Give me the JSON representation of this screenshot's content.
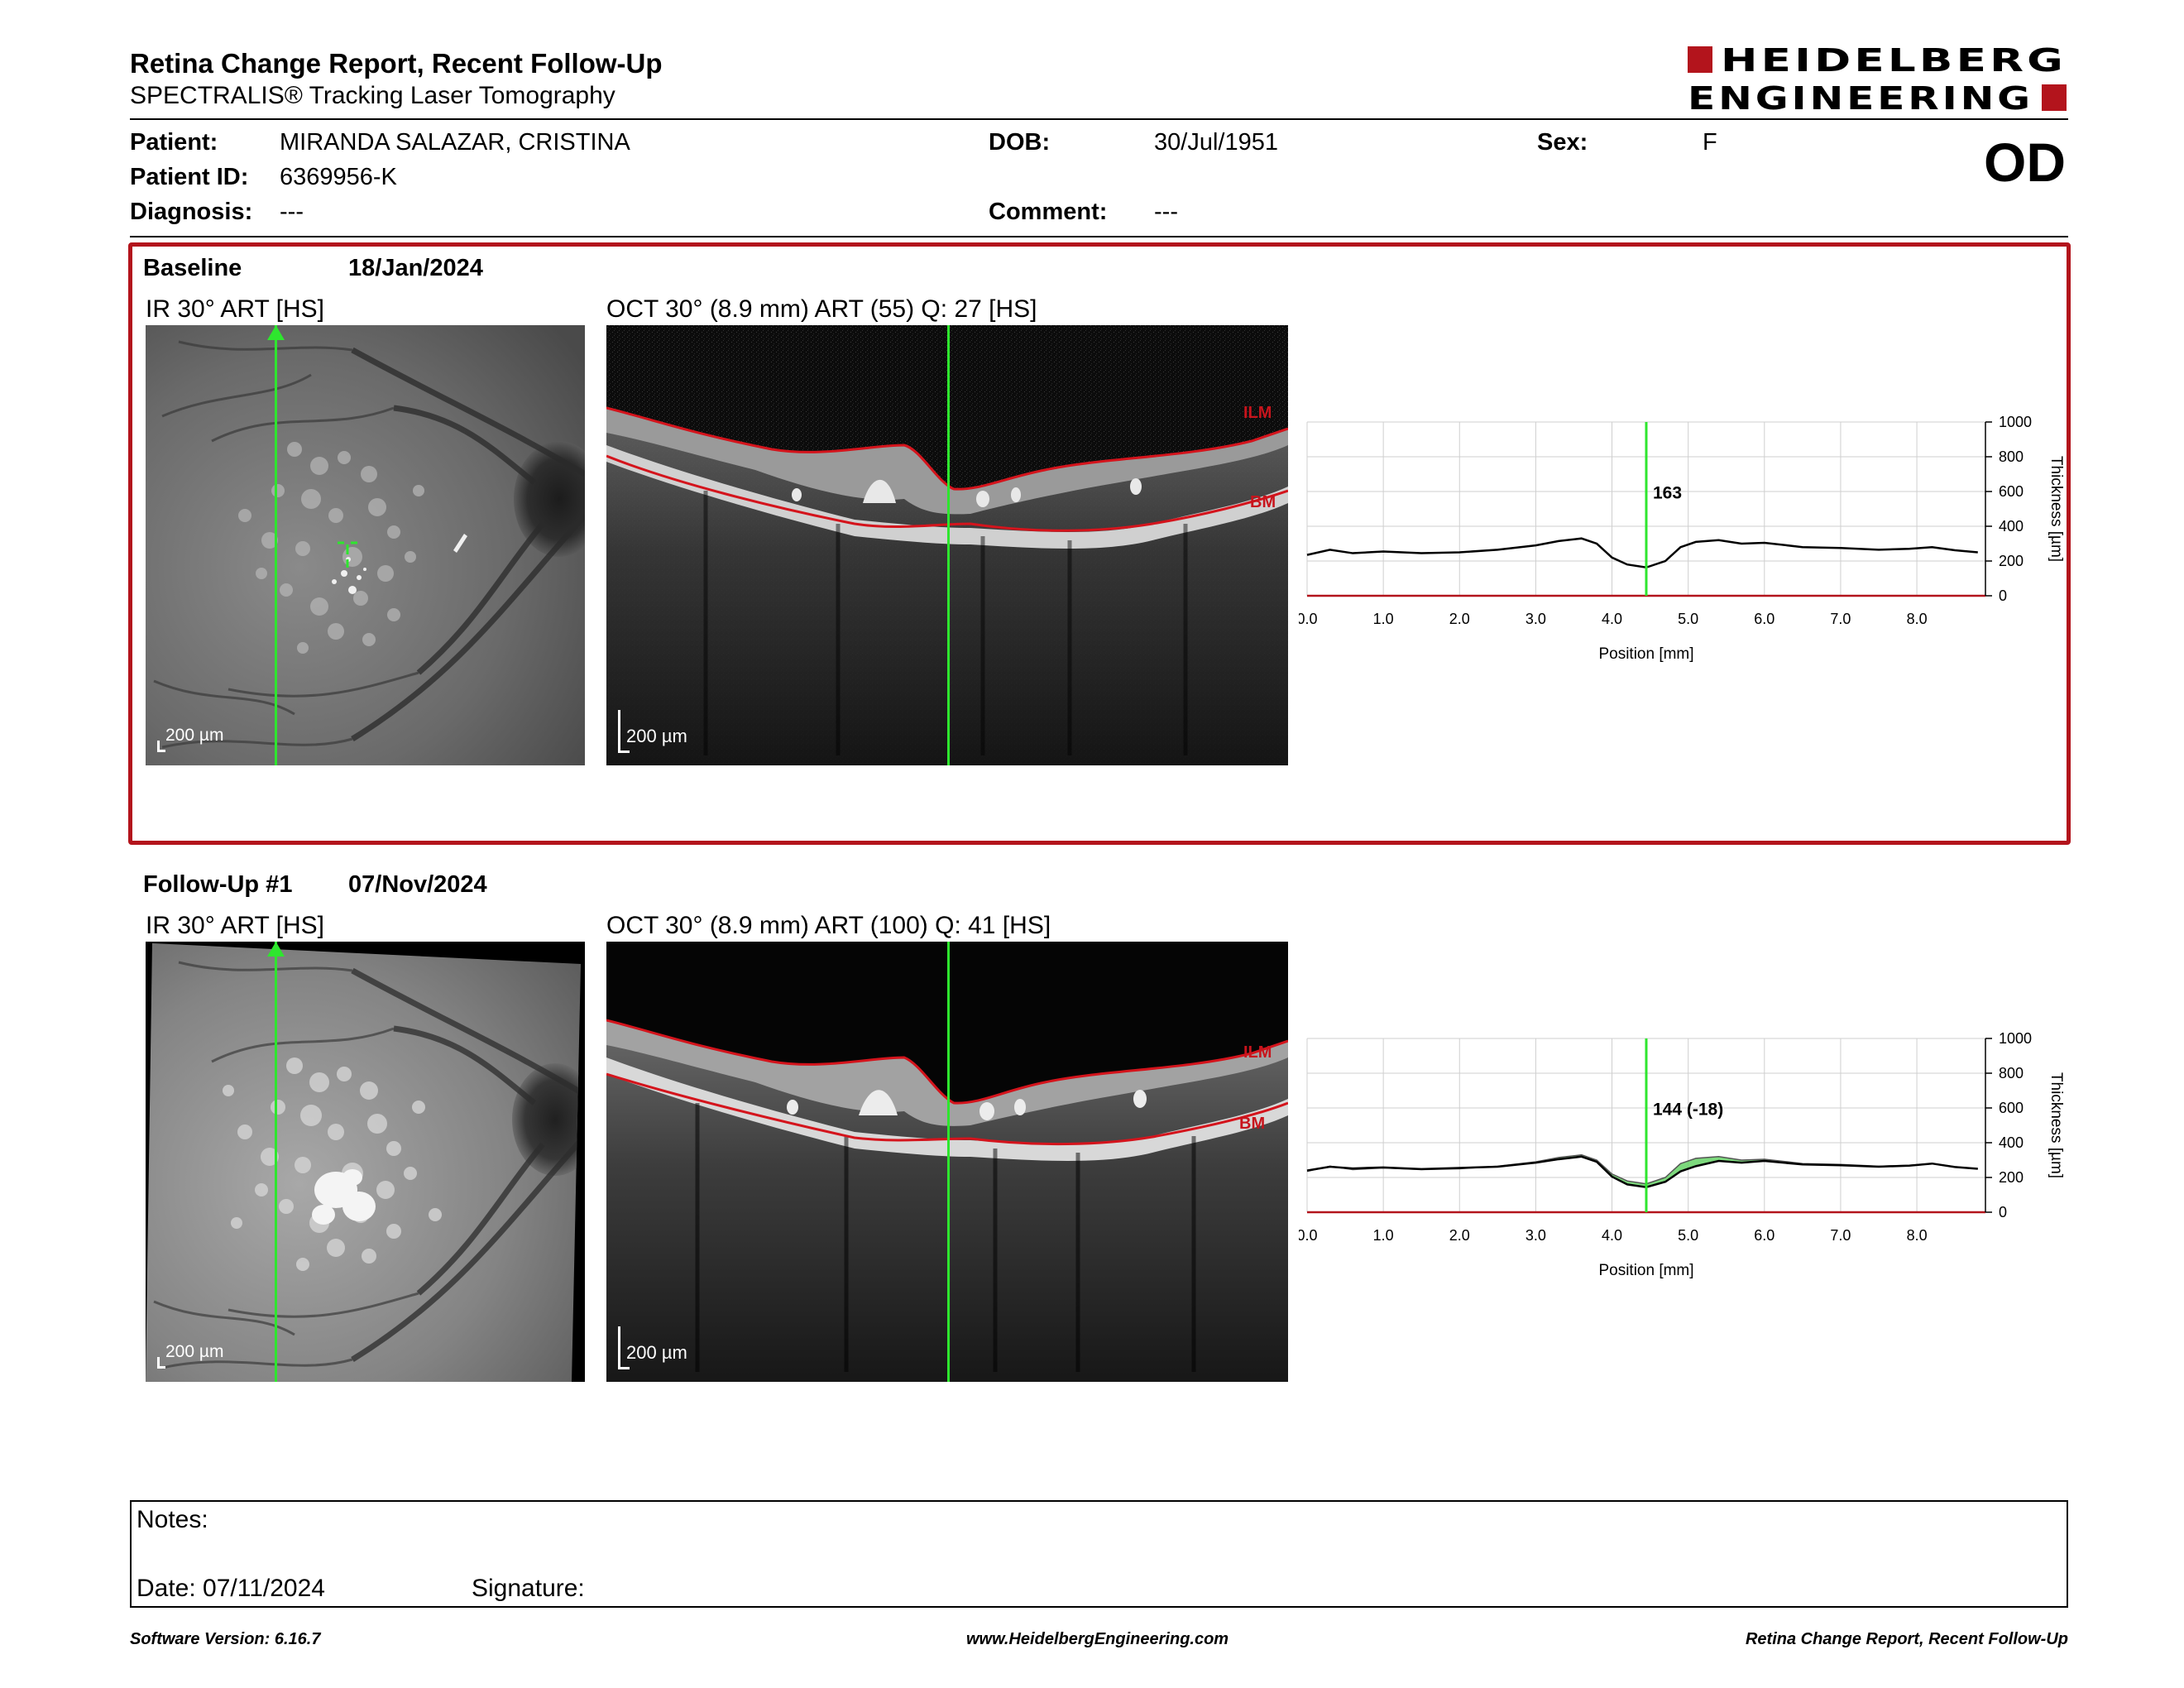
{
  "header": {
    "title": "Retina Change Report, Recent Follow-Up",
    "subtitle": "SPECTRALIS® Tracking Laser Tomography",
    "logo_line1": "HEIDELBERG",
    "logo_line2": "ENGINEERING",
    "eye": "OD"
  },
  "patient": {
    "patient_label": "Patient:",
    "patient_name": "MIRANDA SALAZAR, CRISTINA",
    "id_label": "Patient ID:",
    "id_value": "6369956-K",
    "diagnosis_label": "Diagnosis:",
    "diagnosis_value": "---",
    "dob_label": "DOB:",
    "dob_value": "30/Jul/1951",
    "comment_label": "Comment:",
    "comment_value": "---",
    "sex_label": "Sex:",
    "sex_value": "F"
  },
  "baseline": {
    "name": "Baseline",
    "date": "18/Jan/2024",
    "ir_label": "IR 30° ART [HS]",
    "oct_label": "OCT 30° (8.9 mm) ART (55) Q: 27 [HS]",
    "ir_scale": "200 µm",
    "oct_scale": "200 µm",
    "ilm_label": "ILM",
    "bm_label": "BM"
  },
  "followup": {
    "name": "Follow-Up #1",
    "date": "07/Nov/2024",
    "ir_label": "IR 30° ART [HS]",
    "oct_label": "OCT 30° (8.9 mm) ART (100) Q: 41 [HS]",
    "ir_scale": "200 µm",
    "oct_scale": "200 µm",
    "ilm_label": "ILM",
    "bm_label": "BM"
  },
  "chart_data": [
    {
      "type": "line",
      "xlabel": "Position [mm]",
      "ylabel": "Thickness [µm]",
      "xlim": [
        0,
        8.9
      ],
      "ylim": [
        0,
        1000
      ],
      "x_ticks": [
        "0.0",
        "1.0",
        "2.0",
        "3.0",
        "4.0",
        "5.0",
        "6.0",
        "7.0",
        "8.0"
      ],
      "y_ticks": [
        "0",
        "200",
        "400",
        "600",
        "800",
        "1000"
      ],
      "grid": true,
      "cursor_x": 4.45,
      "cursor_label": "163",
      "series": [
        {
          "x": [
            0.0,
            0.3,
            0.6,
            1.0,
            1.5,
            2.0,
            2.5,
            3.0,
            3.3,
            3.6,
            3.8,
            4.0,
            4.2,
            4.45,
            4.7,
            4.9,
            5.1,
            5.4,
            5.7,
            6.0,
            6.5,
            7.0,
            7.5,
            7.9,
            8.2,
            8.5,
            8.8
          ],
          "values": [
            235,
            265,
            245,
            255,
            245,
            250,
            265,
            290,
            315,
            330,
            300,
            220,
            180,
            163,
            200,
            280,
            310,
            320,
            300,
            305,
            280,
            275,
            265,
            270,
            280,
            262,
            250
          ]
        }
      ]
    },
    {
      "type": "line",
      "xlabel": "Position [mm]",
      "ylabel": "Thickness [µm]",
      "xlim": [
        0,
        8.9
      ],
      "ylim": [
        0,
        1000
      ],
      "x_ticks": [
        "0.0",
        "1.0",
        "2.0",
        "3.0",
        "4.0",
        "5.0",
        "6.0",
        "7.0",
        "8.0"
      ],
      "y_ticks": [
        "0",
        "200",
        "400",
        "600",
        "800",
        "1000"
      ],
      "grid": true,
      "cursor_x": 4.45,
      "cursor_label": "144 (-18)",
      "series": [
        {
          "x": [
            0.0,
            0.3,
            0.6,
            1.0,
            1.5,
            2.0,
            2.5,
            3.0,
            3.3,
            3.6,
            3.8,
            4.0,
            4.2,
            4.45,
            4.7,
            4.9,
            5.1,
            5.4,
            5.7,
            6.0,
            6.5,
            7.0,
            7.5,
            7.9,
            8.2,
            8.5,
            8.8
          ],
          "values": [
            240,
            262,
            252,
            258,
            248,
            255,
            262,
            285,
            305,
            320,
            290,
            205,
            160,
            144,
            175,
            235,
            265,
            295,
            285,
            295,
            275,
            270,
            262,
            268,
            280,
            260,
            250
          ]
        }
      ]
    }
  ],
  "notes": {
    "notes_label": "Notes:",
    "date_label": "Date: 07/11/2024",
    "signature_label": "Signature:"
  },
  "footer": {
    "software": "Software Version: 6.16.7",
    "website": "www.HeidelbergEngineering.com",
    "report": "Retina Change Report, Recent Follow-Up"
  }
}
